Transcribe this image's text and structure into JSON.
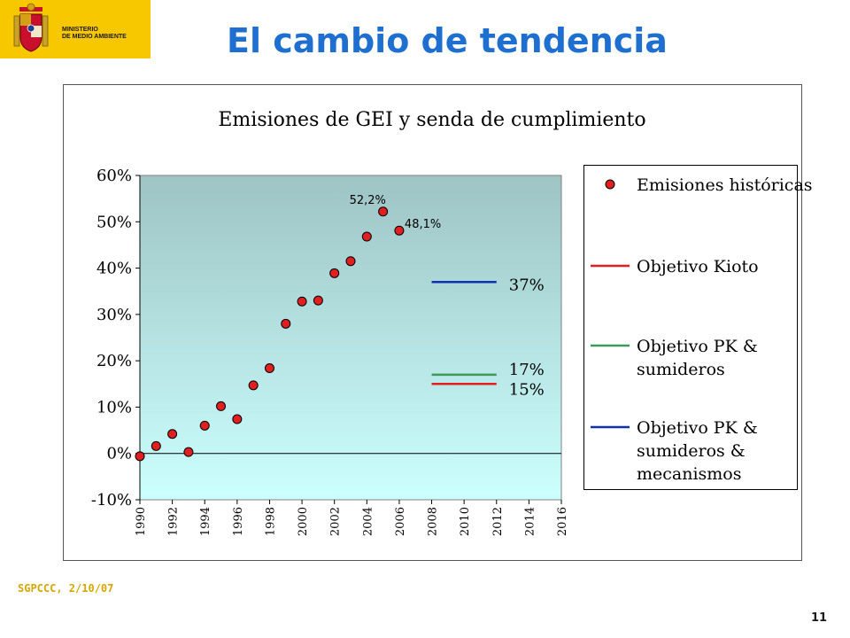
{
  "header": {
    "logo_lines": [
      "MINISTERIO",
      "DE MEDIO AMBIENTE"
    ],
    "title": "El cambio de tendencia",
    "accent_color": "#1f6fd0",
    "logo_color": "#f7c700"
  },
  "footer": {
    "left_text": "SGPCCC, 2/10/07",
    "page_number": "11"
  },
  "chart_data": {
    "type": "scatter",
    "title": "Emisiones de GEI y senda de cumplimiento",
    "xlabel": "",
    "ylabel": "",
    "xlim": [
      1990,
      2016
    ],
    "ylim": [
      -10,
      60
    ],
    "x_ticks": [
      1990,
      1992,
      1994,
      1996,
      1998,
      2000,
      2002,
      2004,
      2006,
      2008,
      2010,
      2012,
      2014,
      2016
    ],
    "y_ticks": [
      {
        "value": -10,
        "label": "-10%"
      },
      {
        "value": 0,
        "label": "0%"
      },
      {
        "value": 10,
        "label": "10%"
      },
      {
        "value": 20,
        "label": "20%"
      },
      {
        "value": 30,
        "label": "30%"
      },
      {
        "value": 40,
        "label": "40%"
      },
      {
        "value": 50,
        "label": "50%"
      },
      {
        "value": 60,
        "label": "60%"
      }
    ],
    "series": [
      {
        "name": "Emisiones históricas",
        "kind": "points",
        "color": "#e02020",
        "x": [
          1990,
          1991,
          1992,
          1993,
          1994,
          1995,
          1996,
          1997,
          1998,
          1999,
          2000,
          2001,
          2002,
          2003,
          2004,
          2005,
          2006
        ],
        "y": [
          -0.6,
          1.6,
          4.2,
          0.3,
          6.0,
          10.2,
          7.4,
          14.7,
          18.4,
          28.0,
          32.8,
          33.0,
          38.9,
          41.5,
          46.8,
          52.2,
          48.1
        ]
      },
      {
        "name": "Objetivo Kioto",
        "kind": "line",
        "color": "#e02020",
        "x": [
          2008,
          2012
        ],
        "y": [
          15,
          15
        ]
      },
      {
        "name": "Objetivo PK & sumideros",
        "kind": "line",
        "color": "#3a9a5a",
        "x": [
          2008,
          2012
        ],
        "y": [
          17,
          17
        ]
      },
      {
        "name": "Objetivo PK & sumideros & mecanismos",
        "kind": "line",
        "color": "#1030b0",
        "x": [
          2008,
          2012
        ],
        "y": [
          37,
          37
        ]
      }
    ],
    "annotations": [
      {
        "text": "52,2%",
        "x": 2005,
        "y": 52.2
      },
      {
        "text": "48,1%",
        "x": 2006,
        "y": 48.1
      },
      {
        "text": "37%",
        "x": 2012,
        "y": 37
      },
      {
        "text": "17%",
        "x": 2012,
        "y": 17
      },
      {
        "text": "15%",
        "x": 2012,
        "y": 15
      }
    ],
    "legend": {
      "placement": "right",
      "entries": [
        {
          "marker": "point",
          "color": "#e02020",
          "lines": [
            "Emisiones históricas"
          ]
        },
        {
          "marker": "line",
          "color": "#e02020",
          "lines": [
            "Objetivo Kioto"
          ]
        },
        {
          "marker": "line",
          "color": "#3a9a5a",
          "lines": [
            "Objetivo PK &",
            "sumideros"
          ]
        },
        {
          "marker": "line",
          "color": "#1030b0",
          "lines": [
            "Objetivo PK &",
            "sumideros &",
            "mecanismos"
          ]
        }
      ]
    },
    "plot_background": [
      "#9ec4c4",
      "#ccffff"
    ]
  }
}
